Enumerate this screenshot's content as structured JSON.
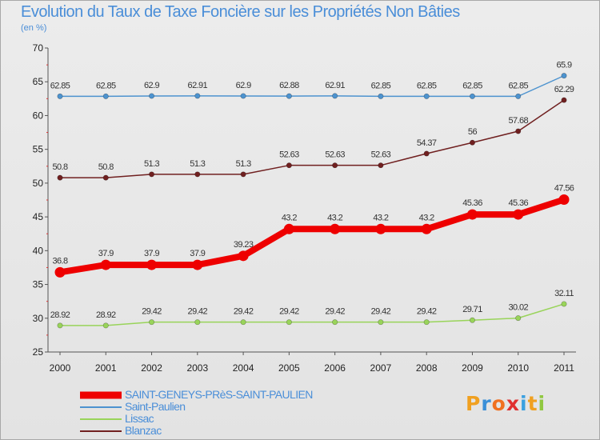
{
  "title": "Evolution du Taux de Taxe Foncière sur les Propriétés Non Bâties",
  "unit": "(en %)",
  "chart_data": {
    "type": "line",
    "categories": [
      "2000",
      "2001",
      "2002",
      "2003",
      "2004",
      "2005",
      "2006",
      "2007",
      "2008",
      "2009",
      "2010",
      "2011"
    ],
    "ylim": [
      25,
      70
    ],
    "yticks": [
      25,
      30,
      35,
      40,
      45,
      50,
      55,
      60,
      65,
      70
    ],
    "grid": false,
    "legend_position": "bottom-left",
    "series": [
      {
        "name": "Saint-Paulien",
        "color": "#4d93cf",
        "width": 1.5,
        "values": [
          62.85,
          62.85,
          62.9,
          62.91,
          62.9,
          62.88,
          62.91,
          62.85,
          62.85,
          62.85,
          62.85,
          65.9
        ],
        "labels": [
          "62.85",
          "62.85",
          "62.9",
          "62.91",
          "62.9",
          "62.88",
          "62.91",
          "62.85",
          "62.85",
          "62.85",
          "62.85",
          "65.9"
        ]
      },
      {
        "name": "Blanzac",
        "color": "#702020",
        "width": 1.5,
        "values": [
          50.8,
          50.8,
          51.3,
          51.3,
          51.3,
          52.63,
          52.63,
          52.63,
          54.37,
          56,
          57.68,
          62.29
        ],
        "labels": [
          "50.8",
          "50.8",
          "51.3",
          "51.3",
          "51.3",
          "52.63",
          "52.63",
          "52.63",
          "54.37",
          "56",
          "57.68",
          "62.29"
        ]
      },
      {
        "name": "SAINT-GENEYS-PRèS-SAINT-PAULIEN",
        "color": "#ee0000",
        "width": 8,
        "values": [
          36.8,
          37.9,
          37.9,
          37.9,
          39.23,
          43.2,
          43.2,
          43.2,
          43.2,
          45.36,
          45.36,
          47.56
        ],
        "labels": [
          "36.8",
          "37.9",
          "37.9",
          "37.9",
          "39.23",
          "43.2",
          "43.2",
          "43.2",
          "43.2",
          "45.36",
          "45.36",
          "47.56"
        ]
      },
      {
        "name": "Lissac",
        "color": "#99d45a",
        "width": 1.5,
        "values": [
          28.92,
          28.92,
          29.42,
          29.42,
          29.42,
          29.42,
          29.42,
          29.42,
          29.42,
          29.71,
          30.02,
          32.11
        ],
        "labels": [
          "28.92",
          "28.92",
          "29.42",
          "29.42",
          "29.42",
          "29.42",
          "29.42",
          "29.42",
          "29.42",
          "29.71",
          "30.02",
          "32.11"
        ]
      }
    ],
    "legend": [
      {
        "label": "SAINT-GENEYS-PRèS-SAINT-PAULIEN",
        "color": "#ee0000",
        "thick": true
      },
      {
        "label": "Saint-Paulien",
        "color": "#4d93cf",
        "thick": false
      },
      {
        "label": "Lissac",
        "color": "#99d45a",
        "thick": false
      },
      {
        "label": "Blanzac",
        "color": "#702020",
        "thick": false
      }
    ]
  },
  "logo": {
    "text": "Proxiti",
    "colors": [
      "#f0a020",
      "#3a8fd8",
      "#f07020",
      "#e03030",
      "#3aa0e0",
      "#f0a020",
      "#90c840"
    ]
  }
}
